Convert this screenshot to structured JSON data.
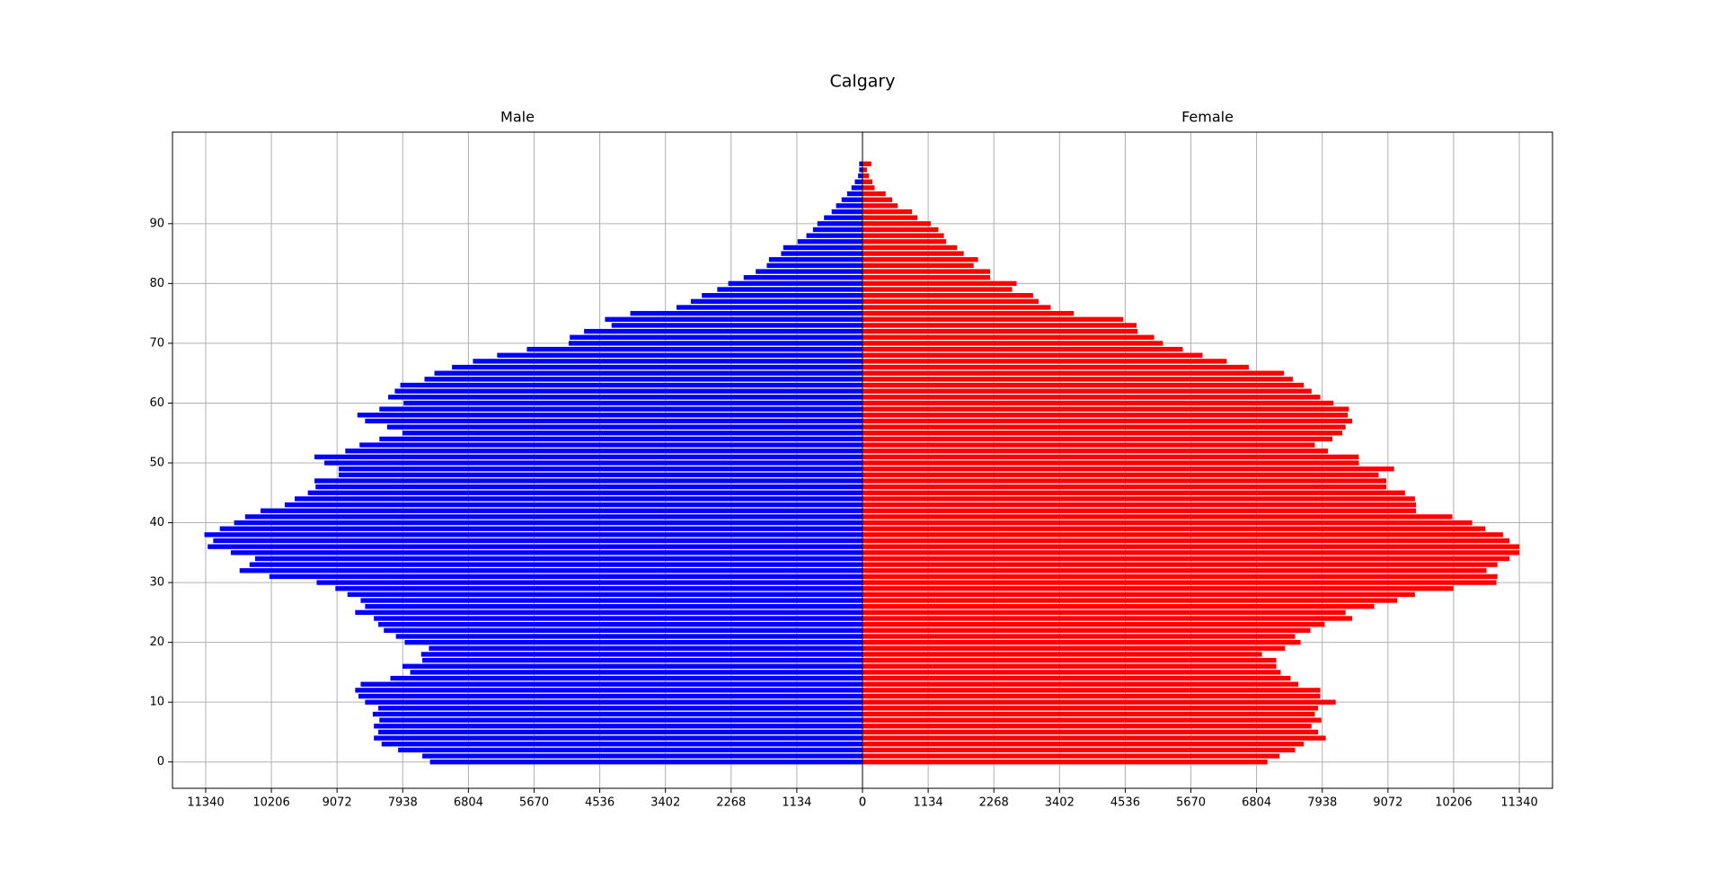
{
  "chart_data": {
    "type": "pyramid",
    "title": "Calgary",
    "y": [
      0,
      1,
      2,
      3,
      4,
      5,
      6,
      7,
      8,
      9,
      10,
      11,
      12,
      13,
      14,
      15,
      16,
      17,
      18,
      19,
      20,
      21,
      22,
      23,
      24,
      25,
      26,
      27,
      28,
      29,
      30,
      31,
      32,
      33,
      34,
      35,
      36,
      37,
      38,
      39,
      40,
      41,
      42,
      43,
      44,
      45,
      46,
      47,
      48,
      49,
      50,
      51,
      52,
      53,
      54,
      55,
      56,
      57,
      58,
      59,
      60,
      61,
      62,
      63,
      64,
      65,
      66,
      67,
      68,
      69,
      70,
      71,
      72,
      73,
      74,
      75,
      76,
      77,
      78,
      79,
      80,
      81,
      82,
      83,
      84,
      85,
      86,
      87,
      88,
      89,
      90,
      91,
      92,
      93,
      94,
      95,
      96,
      97,
      98,
      99,
      100
    ],
    "ylim": [
      -4.4,
      105.3
    ],
    "yticks": [
      0,
      10,
      20,
      30,
      40,
      50,
      60,
      70,
      80,
      90
    ],
    "xlim": [
      0,
      11913
    ],
    "xticks": [
      0,
      1134,
      2268,
      3402,
      4536,
      5670,
      6804,
      7938,
      9072,
      10206,
      11340
    ],
    "grid": true,
    "series": [
      {
        "name": "Male",
        "side": "left",
        "color": "#0000ff",
        "values": [
          7467,
          7600,
          8018,
          8303,
          8436,
          8360,
          8436,
          8341,
          8455,
          8360,
          8588,
          8702,
          8759,
          8664,
          8151,
          7809,
          7942,
          7600,
          7619,
          7486,
          7904,
          8056,
          8265,
          8360,
          8436,
          8759,
          8588,
          8664,
          8892,
          9101,
          9424,
          10241,
          10754,
          10583,
          10488,
          10906,
          11305,
          11210,
          11362,
          11096,
          10849,
          10659,
          10393,
          9975,
          9804,
          9576,
          9443,
          9462,
          9044,
          9044,
          9291,
          9462,
          8930,
          8683,
          8341,
          7942,
          8208,
          8588,
          8721,
          8341,
          7923,
          8189,
          8075,
          7980,
          7562,
          7391,
          7087,
          6726,
          6308,
          5795,
          5073,
          5054,
          4807,
          4332,
          4446,
          4009,
          3211,
          2964,
          2774,
          2508,
          2318,
          2052,
          1843,
          1653,
          1615,
          1406,
          1368,
          1121,
          969,
          855,
          779,
          665,
          532,
          456,
          361,
          266,
          190,
          133,
          76,
          57,
          57
        ]
      },
      {
        "name": "Female",
        "side": "right",
        "color": "#ff0000",
        "values": [
          6992,
          7201,
          7467,
          7619,
          7999,
          7866,
          7752,
          7923,
          7809,
          7866,
          8170,
          7904,
          7904,
          7524,
          7391,
          7220,
          7144,
          7144,
          6897,
          7296,
          7562,
          7467,
          7733,
          7980,
          8455,
          8341,
          8835,
          9234,
          9538,
          10203,
          10944,
          10963,
          10773,
          10963,
          11172,
          11343,
          11343,
          11172,
          11058,
          10754,
          10526,
          10184,
          9557,
          9557,
          9538,
          9367,
          9044,
          9044,
          8911,
          9177,
          8569,
          8569,
          8037,
          7809,
          8113,
          8284,
          8341,
          8455,
          8379,
          8398,
          8132,
          7904,
          7752,
          7619,
          7429,
          7277,
          6669,
          6289,
          5871,
          5529,
          5187,
          5035,
          4750,
          4731,
          4503,
          3648,
          3249,
          3040,
          2945,
          2584,
          2660,
          2204,
          2204,
          1919,
          1995,
          1748,
          1634,
          1444,
          1406,
          1311,
          1178,
          950,
          855,
          608,
          513,
          399,
          209,
          171,
          114,
          76,
          152
        ]
      }
    ]
  }
}
